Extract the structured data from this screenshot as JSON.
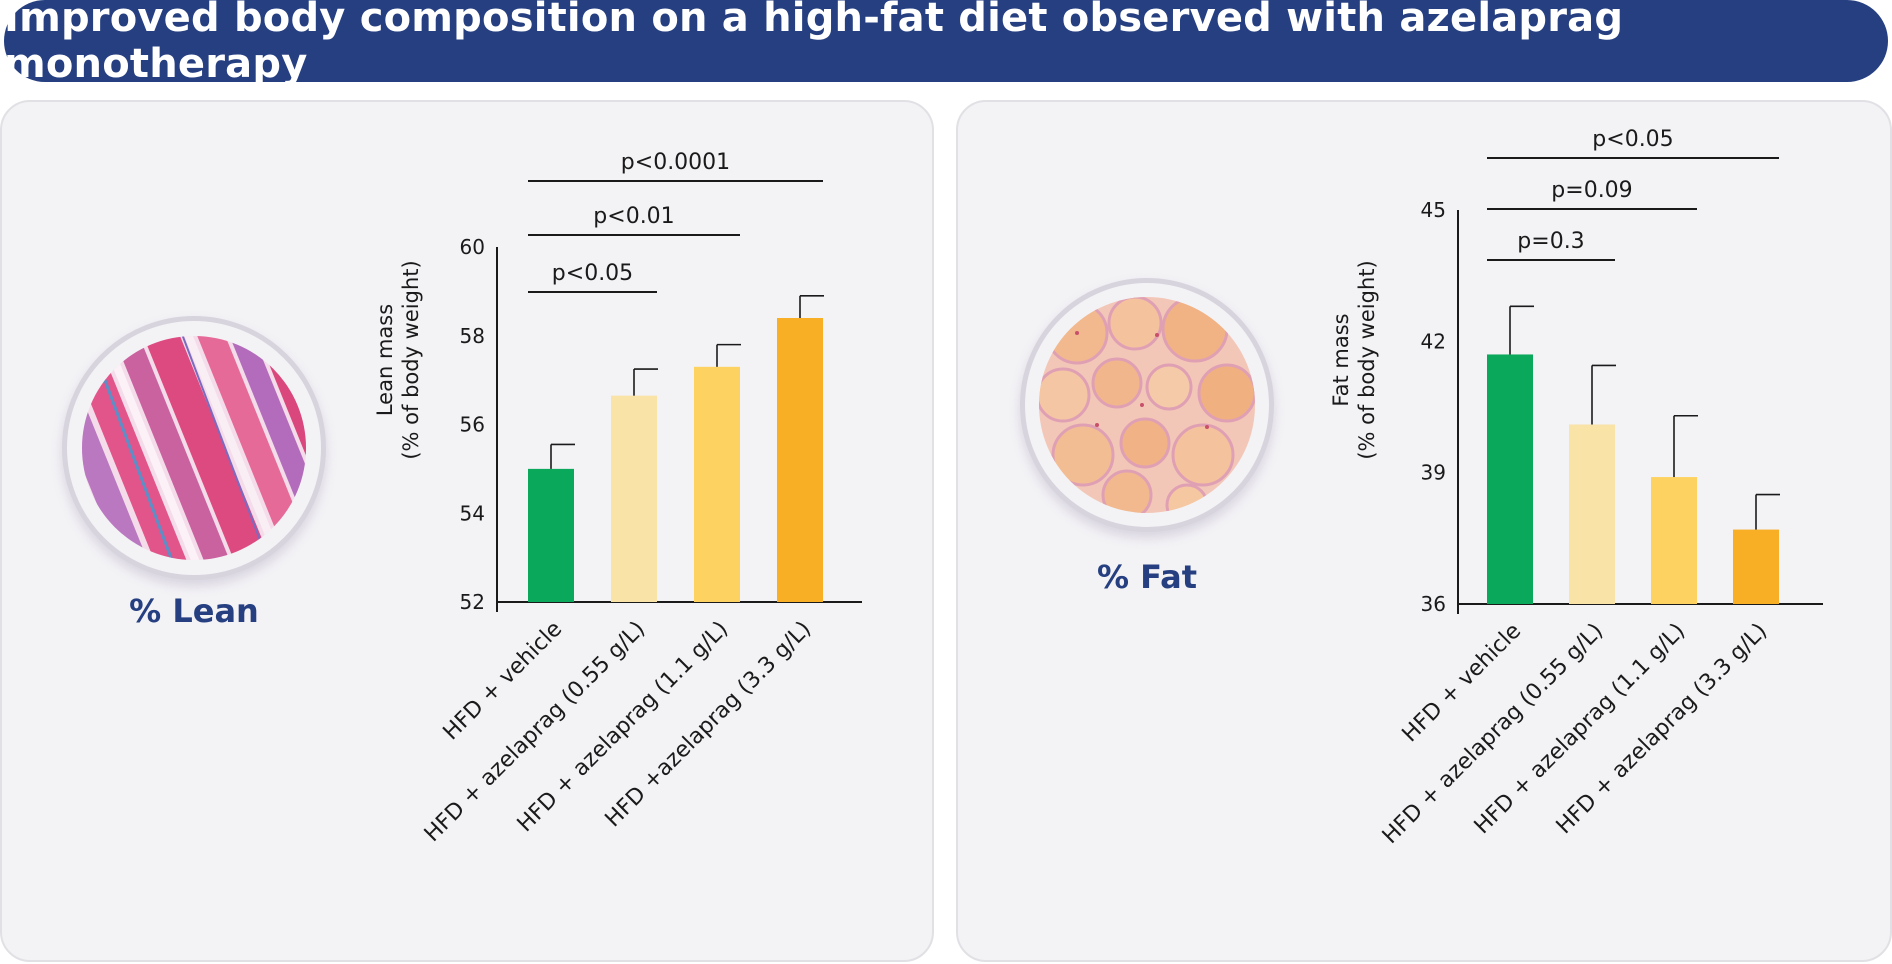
{
  "title": "Improved body composition on a high-fat diet observed with azelaprag monotherapy",
  "colors": {
    "title_bg": "#253f80",
    "vehicle": "#0aa85a",
    "dose_low": "#f9e3a6",
    "dose_mid": "#fed261",
    "dose_high": "#f8ae25"
  },
  "lean_panel": {
    "caption": "% Lean",
    "image_icon": "muscle-tissue-histology-image"
  },
  "fat_panel": {
    "caption": "% Fat",
    "image_icon": "adipose-tissue-histology-image"
  },
  "chart_data": [
    {
      "type": "bar",
      "ylabel_lines": [
        "Lean mass",
        "(% of body weight)"
      ],
      "categories": [
        "HFD + vehicle",
        "HFD + azelaprag (0.55 g/L)",
        "HFD + azelaprag (1.1 g/L)",
        "HFD +azelaprag (3.3 g/L)"
      ],
      "values": [
        55.0,
        56.65,
        57.3,
        58.4
      ],
      "errors": [
        0.55,
        0.6,
        0.5,
        0.5
      ],
      "ylim": [
        52,
        60
      ],
      "yticks": [
        52,
        54,
        56,
        58,
        60
      ],
      "comparisons": [
        {
          "label": "p<0.05",
          "from": 0,
          "to": 1
        },
        {
          "label": "p<0.01",
          "from": 0,
          "to": 2
        },
        {
          "label": "p<0.0001",
          "from": 0,
          "to": 3
        }
      ]
    },
    {
      "type": "bar",
      "ylabel_lines": [
        "Fat mass",
        "(% of body weight)"
      ],
      "categories": [
        "HFD + vehicle",
        "HFD + azelaprag (0.55 g/L)",
        "HFD + azelaprag (1.1 g/L)",
        "HFD + azelaprag (3.3 g/L)"
      ],
      "values": [
        41.7,
        40.1,
        38.9,
        37.7
      ],
      "errors": [
        1.1,
        1.35,
        1.4,
        0.8
      ],
      "ylim": [
        36,
        45
      ],
      "yticks": [
        36,
        39,
        42,
        45
      ],
      "comparisons": [
        {
          "label": "p=0.3",
          "from": 0,
          "to": 1
        },
        {
          "label": "p=0.09",
          "from": 0,
          "to": 2
        },
        {
          "label": "p<0.05",
          "from": 0,
          "to": 3
        }
      ]
    }
  ]
}
